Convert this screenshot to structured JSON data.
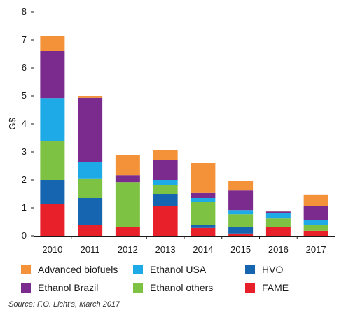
{
  "chart_data": {
    "type": "bar",
    "stacked": true,
    "ylabel": "G$",
    "ylim": [
      0,
      8
    ],
    "yticks": [
      "0",
      "1",
      "2",
      "3",
      "4",
      "5",
      "6",
      "7",
      "8"
    ],
    "categories": [
      "2010",
      "2011",
      "2012",
      "2013",
      "2014",
      "2015",
      "2016",
      "2017"
    ],
    "series": [
      {
        "name": "FAME",
        "color": "#e8202a",
        "values": [
          1.15,
          0.38,
          0.32,
          1.06,
          0.28,
          0.08,
          0.32,
          0.18
        ]
      },
      {
        "name": "HVO",
        "color": "#1565b0",
        "values": [
          0.85,
          0.97,
          0.0,
          0.44,
          0.12,
          0.24,
          0.0,
          0.0
        ]
      },
      {
        "name": "Ethanol others",
        "color": "#7dc242",
        "values": [
          1.4,
          0.68,
          1.6,
          0.3,
          0.8,
          0.45,
          0.3,
          0.22
        ]
      },
      {
        "name": "Ethanol USA",
        "color": "#1eaae7",
        "values": [
          1.52,
          0.62,
          0.0,
          0.2,
          0.15,
          0.15,
          0.2,
          0.15
        ]
      },
      {
        "name": "Ethanol Brazil",
        "color": "#7b2a8e",
        "values": [
          1.68,
          2.28,
          0.25,
          0.7,
          0.18,
          0.7,
          0.05,
          0.5
        ]
      },
      {
        "name": "Advanced biofuels",
        "color": "#f39238",
        "values": [
          0.55,
          0.07,
          0.73,
          0.35,
          1.07,
          0.35,
          0.03,
          0.43
        ]
      }
    ],
    "legend": [
      [
        "Advanced biofuels",
        "Ethanol USA",
        "HVO"
      ],
      [
        "Ethanol Brazil",
        "Ethanol others",
        "FAME"
      ]
    ],
    "grid": false,
    "legend_position": "bottom"
  },
  "source": "Source: F.O. Licht’s, March 2017"
}
